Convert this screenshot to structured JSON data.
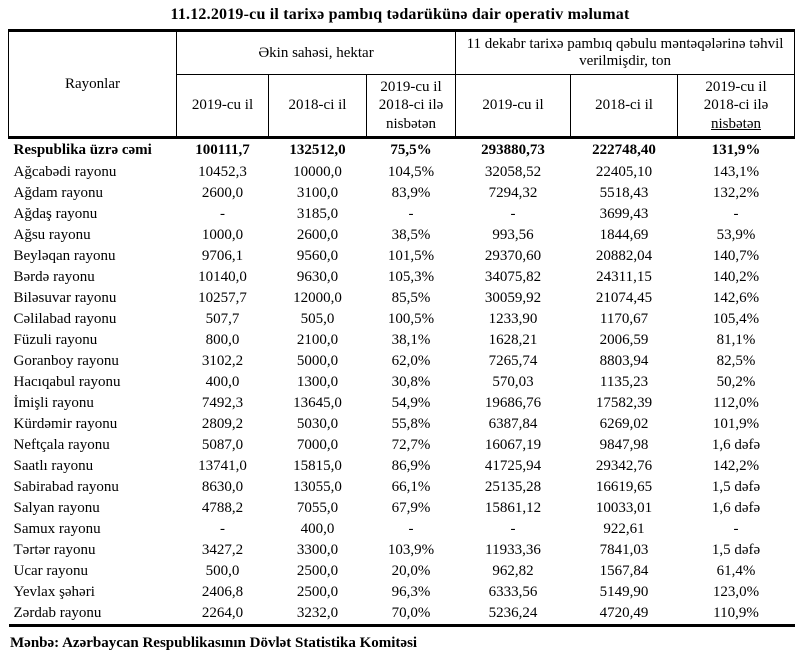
{
  "title": "11.12.2019-cu il tarixə pambıq tədarükünə dair operativ məlumat",
  "table": {
    "header": {
      "rayonlar": "Rayonlar",
      "group_ekin": "Əkin sahəsi, hektar",
      "group_qebul": "11 dekabr tarixə pambıq qəbulu məntəqələrinə təhvil verilmişdir, ton",
      "year_2019": "2019-cu il",
      "year_2018": "2018-ci il",
      "ratio_full": "2019-cu il\n2018-ci ilə\nnisbətən",
      "ratio_top": "2019-cu il\n2018-ci ilə",
      "ratio_underlined": "nisbətən"
    },
    "total": [
      "Respublika üzrə cəmi",
      "100111,7",
      "132512,0",
      "75,5%",
      "293880,73",
      "222748,40",
      "131,9%"
    ],
    "rows": [
      [
        "Ağcabədi rayonu",
        "10452,3",
        "10000,0",
        "104,5%",
        "32058,52",
        "22405,10",
        "143,1%"
      ],
      [
        "Ağdam rayonu",
        "2600,0",
        "3100,0",
        "83,9%",
        "7294,32",
        "5518,43",
        "132,2%"
      ],
      [
        "Ağdaş rayonu",
        "-",
        "3185,0",
        "-",
        "-",
        "3699,43",
        "-"
      ],
      [
        "Ağsu rayonu",
        "1000,0",
        "2600,0",
        "38,5%",
        "993,56",
        "1844,69",
        "53,9%"
      ],
      [
        "Beyləqan rayonu",
        "9706,1",
        "9560,0",
        "101,5%",
        "29370,60",
        "20882,04",
        "140,7%"
      ],
      [
        "Bərdə rayonu",
        "10140,0",
        "9630,0",
        "105,3%",
        "34075,82",
        "24311,15",
        "140,2%"
      ],
      [
        "Biləsuvar rayonu",
        "10257,7",
        "12000,0",
        "85,5%",
        "30059,92",
        "21074,45",
        "142,6%"
      ],
      [
        "Cəlilabad rayonu",
        "507,7",
        "505,0",
        "100,5%",
        "1233,90",
        "1170,67",
        "105,4%"
      ],
      [
        "Füzuli rayonu",
        "800,0",
        "2100,0",
        "38,1%",
        "1628,21",
        "2006,59",
        "81,1%"
      ],
      [
        "Goranboy rayonu",
        "3102,2",
        "5000,0",
        "62,0%",
        "7265,74",
        "8803,94",
        "82,5%"
      ],
      [
        "Hacıqabul rayonu",
        "400,0",
        "1300,0",
        "30,8%",
        "570,03",
        "1135,23",
        "50,2%"
      ],
      [
        "İmişli rayonu",
        "7492,3",
        "13645,0",
        "54,9%",
        "19686,76",
        "17582,39",
        "112,0%"
      ],
      [
        "Kürdəmir rayonu",
        "2809,2",
        "5030,0",
        "55,8%",
        "6387,84",
        "6269,02",
        "101,9%"
      ],
      [
        "Neftçala rayonu",
        "5087,0",
        "7000,0",
        "72,7%",
        "16067,19",
        "9847,98",
        "1,6 dəfə"
      ],
      [
        "Saatlı rayonu",
        "13741,0",
        "15815,0",
        "86,9%",
        "41725,94",
        "29342,76",
        "142,2%"
      ],
      [
        "Sabirabad rayonu",
        "8630,0",
        "13055,0",
        "66,1%",
        "25135,28",
        "16619,65",
        "1,5 dəfə"
      ],
      [
        "Salyan rayonu",
        "4788,2",
        "7055,0",
        "67,9%",
        "15861,12",
        "10033,01",
        "1,6 dəfə"
      ],
      [
        "Samux rayonu",
        "-",
        "400,0",
        "-",
        "-",
        "922,61",
        "-"
      ],
      [
        "Tərtər rayonu",
        "3427,2",
        "3300,0",
        "103,9%",
        "11933,36",
        "7841,03",
        "1,5 dəfə"
      ],
      [
        "Ucar rayonu",
        "500,0",
        "2500,0",
        "20,0%",
        "962,82",
        "1567,84",
        "61,4%"
      ],
      [
        "Yevlax şəhəri",
        "2406,8",
        "2500,0",
        "96,3%",
        "6333,56",
        "5149,90",
        "123,0%"
      ],
      [
        "Zərdab rayonu",
        "2264,0",
        "3232,0",
        "70,0%",
        "5236,24",
        "4720,49",
        "110,9%"
      ]
    ]
  },
  "footer": "Mənbə: Azərbaycan Respublikasının Dövlət Statistika Komitəsi"
}
